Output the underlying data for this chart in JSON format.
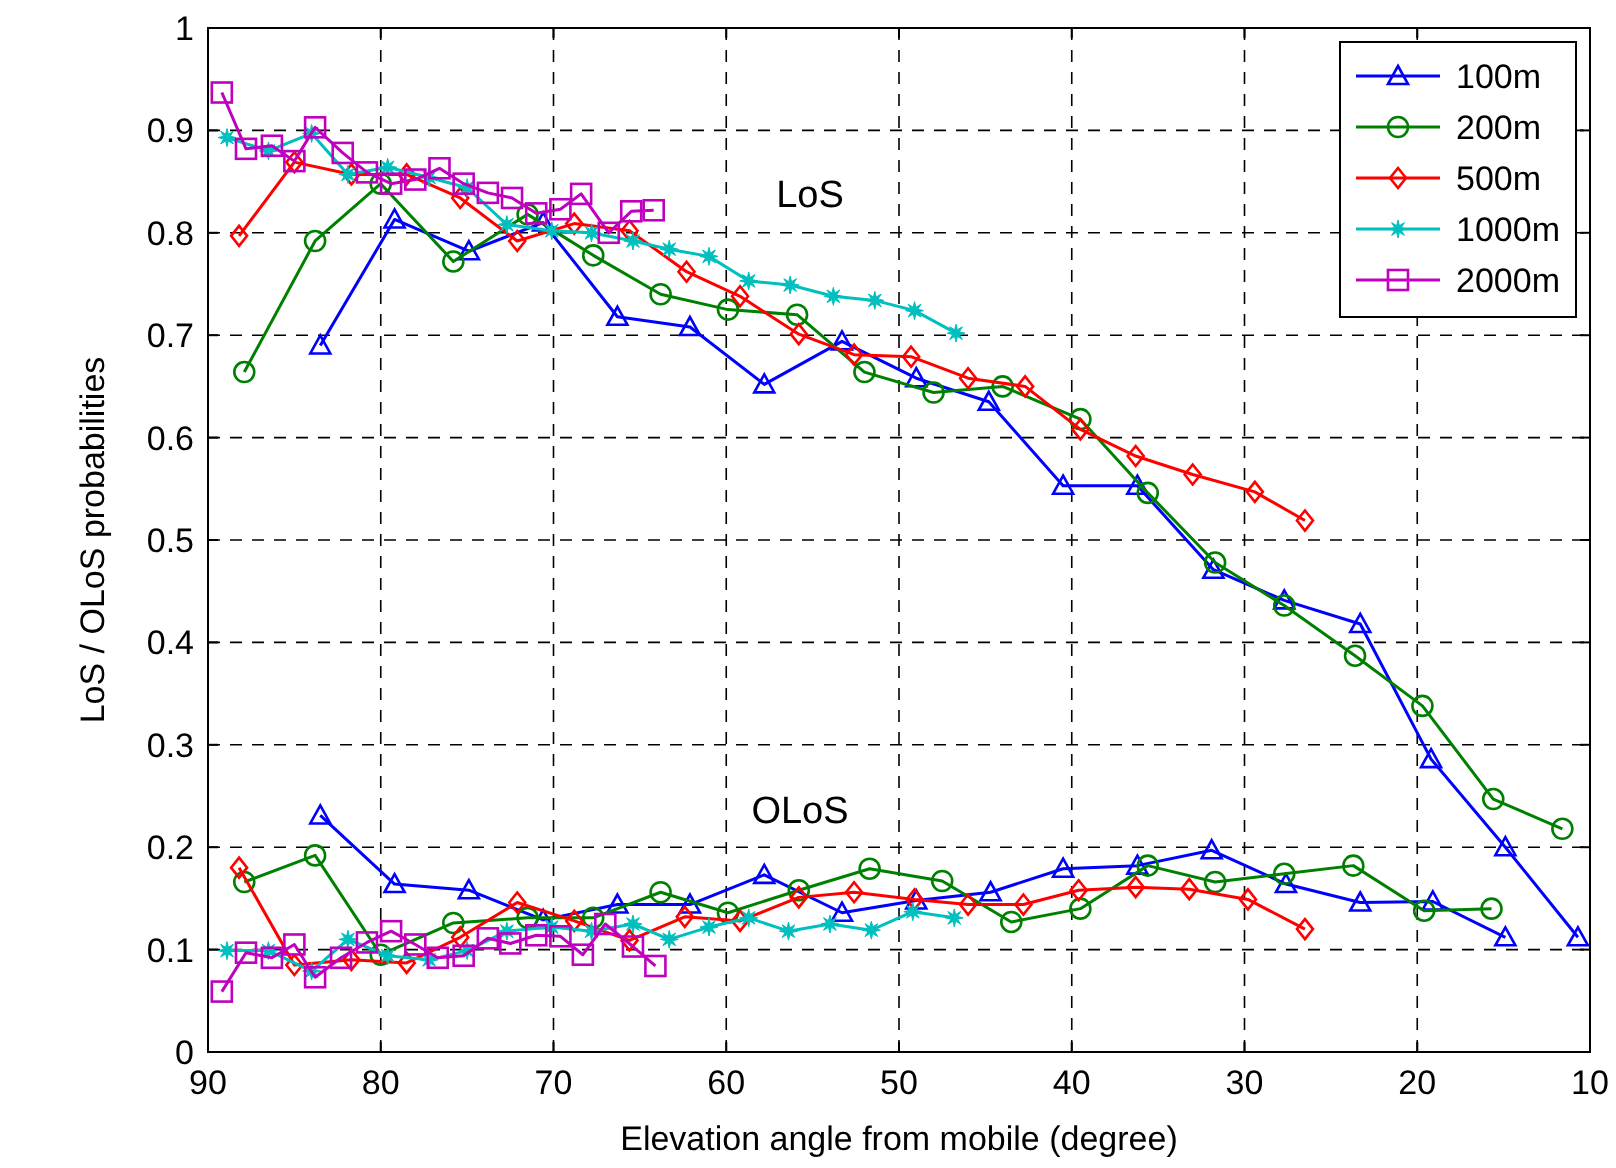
{
  "chart_data": {
    "type": "line",
    "xlabel": "Elevation angle from mobile (degree)",
    "ylabel": "LoS / OLoS probabilities",
    "xlim": [
      90,
      10
    ],
    "xticks": [
      90,
      80,
      70,
      60,
      50,
      40,
      30,
      20,
      10
    ],
    "ylim": [
      0,
      1
    ],
    "yticks": [
      0,
      0.1,
      0.2,
      0.3,
      0.4,
      0.5,
      0.6,
      0.7,
      0.8,
      0.9,
      1
    ],
    "grid": true,
    "legend": "top right",
    "line_style": "solid",
    "annotations": [
      "LoS",
      "OLoS"
    ],
    "series": [
      {
        "name": "100m",
        "color": "#0000ff",
        "marker": "triangle",
        "x": [
          83.5,
          79.2,
          74.9,
          70.6,
          66.3,
          62.1,
          57.8,
          53.3,
          49.0,
          44.8,
          40.5,
          36.2,
          31.8,
          27.7,
          23.3,
          19.2,
          14.9,
          10.7
        ],
        "values": [
          0.69,
          0.813,
          0.782,
          0.81,
          0.718,
          0.708,
          0.652,
          0.694,
          0.658,
          0.635,
          0.553,
          0.553,
          0.471,
          0.441,
          0.418,
          0.286,
          0.2,
          0.112
        ]
      },
      {
        "name": "200m",
        "color": "#008000",
        "marker": "circle",
        "x": [
          87.9,
          83.8,
          80.0,
          75.8,
          71.5,
          67.7,
          63.8,
          59.9,
          55.9,
          52.0,
          48.0,
          44.0,
          39.5,
          35.6,
          31.7,
          27.7,
          23.6,
          19.7,
          15.6,
          11.6
        ],
        "values": [
          0.664,
          0.792,
          0.848,
          0.772,
          0.818,
          0.778,
          0.74,
          0.725,
          0.72,
          0.664,
          0.644,
          0.65,
          0.618,
          0.546,
          0.478,
          0.436,
          0.387,
          0.338,
          0.247,
          0.218
        ]
      },
      {
        "name": "500m",
        "color": "#ff0000",
        "marker": "diamond",
        "x": [
          88.2,
          85.0,
          81.7,
          78.5,
          75.4,
          72.1,
          68.8,
          65.6,
          62.3,
          59.2,
          55.8,
          52.6,
          49.3,
          46.0,
          42.7,
          39.5,
          36.3,
          33.0,
          29.4,
          26.5
        ],
        "values": [
          0.797,
          0.869,
          0.857,
          0.857,
          0.834,
          0.792,
          0.809,
          0.802,
          0.762,
          0.738,
          0.701,
          0.681,
          0.679,
          0.658,
          0.65,
          0.608,
          0.582,
          0.564,
          0.547,
          0.519
        ]
      },
      {
        "name": "1000m",
        "color": "#00bfbf",
        "marker": "star",
        "x": [
          88.9,
          86.5,
          84.0,
          81.9,
          79.6,
          77.2,
          75.0,
          72.7,
          70.1,
          67.8,
          65.4,
          63.3,
          61.0,
          58.7,
          56.3,
          53.8,
          51.4,
          49.1,
          46.7
        ],
        "values": [
          0.893,
          0.88,
          0.897,
          0.857,
          0.864,
          0.854,
          0.844,
          0.808,
          0.802,
          0.8,
          0.792,
          0.784,
          0.777,
          0.753,
          0.749,
          0.738,
          0.734,
          0.724,
          0.702
        ]
      },
      {
        "name": "2000m",
        "color": "#bf00bf",
        "marker": "square",
        "x": [
          89.2,
          87.8,
          86.3,
          85.0,
          83.8,
          82.2,
          80.8,
          79.4,
          78.0,
          76.6,
          75.2,
          73.8,
          72.4,
          71.0,
          69.6,
          68.4,
          66.8,
          65.5,
          64.2
        ],
        "values": [
          0.937,
          0.882,
          0.885,
          0.87,
          0.903,
          0.878,
          0.859,
          0.848,
          0.852,
          0.863,
          0.848,
          0.839,
          0.834,
          0.819,
          0.823,
          0.838,
          0.8,
          0.821,
          0.822
        ]
      },
      {
        "color": "#0000ff",
        "marker": "triangle",
        "x": [
          83.5,
          79.2,
          74.9,
          70.6,
          66.3,
          62.1,
          57.8,
          53.3,
          49.0,
          44.7,
          40.5,
          36.2,
          31.9,
          27.6,
          23.3,
          19.1,
          14.9
        ],
        "values": [
          0.231,
          0.164,
          0.158,
          0.129,
          0.144,
          0.144,
          0.173,
          0.136,
          0.148,
          0.156,
          0.179,
          0.182,
          0.197,
          0.164,
          0.146,
          0.147,
          0.112
        ]
      },
      {
        "color": "#008000",
        "marker": "circle",
        "x": [
          87.9,
          83.8,
          80.0,
          75.8,
          71.5,
          67.7,
          63.8,
          59.9,
          55.8,
          51.7,
          47.5,
          43.5,
          39.5,
          35.6,
          31.7,
          27.7,
          23.7,
          19.6,
          15.7
        ],
        "values": [
          0.166,
          0.192,
          0.095,
          0.126,
          0.131,
          0.131,
          0.156,
          0.136,
          0.158,
          0.179,
          0.167,
          0.127,
          0.14,
          0.182,
          0.166,
          0.174,
          0.182,
          0.138,
          0.14
        ]
      },
      {
        "color": "#ff0000",
        "marker": "diamond",
        "x": [
          88.2,
          85.0,
          81.7,
          78.5,
          75.4,
          72.1,
          68.8,
          65.6,
          62.4,
          59.2,
          55.8,
          52.6,
          49.1,
          46.0,
          42.8,
          39.6,
          36.3,
          33.2,
          29.8,
          26.5
        ],
        "values": [
          0.18,
          0.085,
          0.09,
          0.087,
          0.112,
          0.146,
          0.128,
          0.109,
          0.132,
          0.128,
          0.151,
          0.156,
          0.149,
          0.144,
          0.144,
          0.158,
          0.161,
          0.159,
          0.149,
          0.12
        ]
      },
      {
        "color": "#00bfbf",
        "marker": "star",
        "x": [
          88.9,
          86.5,
          84.0,
          81.9,
          79.6,
          77.2,
          75.0,
          72.7,
          70.1,
          67.8,
          65.4,
          63.3,
          61.0,
          58.7,
          56.4,
          54.0,
          51.6,
          49.2,
          46.8
        ],
        "values": [
          0.099,
          0.099,
          0.079,
          0.11,
          0.094,
          0.09,
          0.099,
          0.118,
          0.122,
          0.118,
          0.125,
          0.11,
          0.122,
          0.131,
          0.118,
          0.125,
          0.119,
          0.137,
          0.131
        ]
      },
      {
        "color": "#bf00bf",
        "marker": "square",
        "x": [
          89.2,
          87.8,
          86.3,
          85.0,
          83.8,
          82.3,
          80.8,
          79.4,
          78.0,
          76.7,
          75.2,
          73.8,
          72.5,
          71.0,
          69.6,
          68.3,
          67.0,
          65.4,
          64.1
        ],
        "values": [
          0.059,
          0.097,
          0.092,
          0.105,
          0.073,
          0.092,
          0.107,
          0.118,
          0.105,
          0.092,
          0.094,
          0.111,
          0.106,
          0.114,
          0.113,
          0.095,
          0.125,
          0.103,
          0.084
        ]
      }
    ]
  }
}
